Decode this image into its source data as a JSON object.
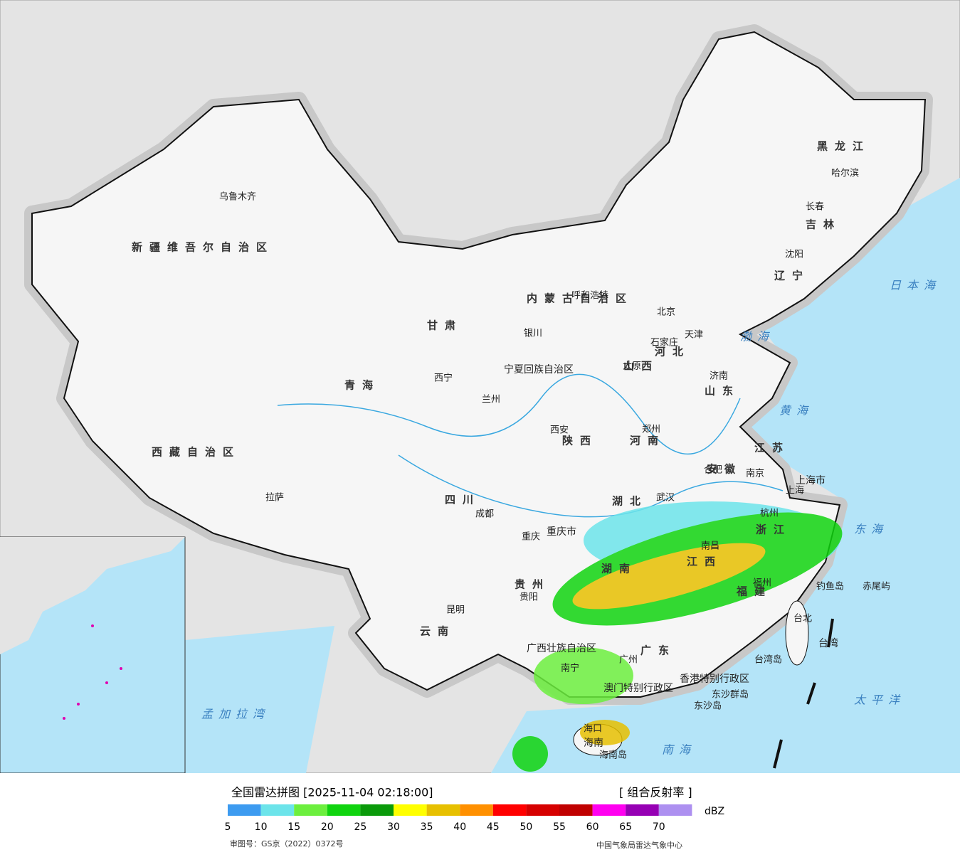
{
  "map": {
    "labels": [
      "新疆维吾尔自治区",
      "西藏自治区",
      "青海",
      "甘肃",
      "内蒙古自治区",
      "黑龙江",
      "吉林",
      "辽宁",
      "河北",
      "山西",
      "山东",
      "河南",
      "陕西",
      "四川",
      "云南",
      "贵州",
      "广西壮族自治区",
      "广东",
      "湖南",
      "湖北",
      "江西",
      "福建",
      "浙江",
      "江苏",
      "安徽",
      "重庆市",
      "上海市",
      "宁夏回族自治区",
      "台湾",
      "香港特别行政区",
      "澳门特别行政区",
      "海南",
      "乌鲁木齐",
      "拉萨",
      "西宁",
      "兰州",
      "银川",
      "呼和浩特",
      "北京",
      "天津",
      "石家庄",
      "太原",
      "济南",
      "郑州",
      "西安",
      "成都",
      "重庆",
      "贵阳",
      "昆明",
      "南宁",
      "广州",
      "武汉",
      "南昌",
      "合肥",
      "南京",
      "上海",
      "杭州",
      "福州",
      "台北",
      "哈尔滨",
      "长春",
      "沈阳",
      "海口",
      "渤海",
      "黄海",
      "日本海",
      "东海",
      "太平洋",
      "南海",
      "孟加拉湾",
      "钓鱼岛",
      "赤尾屿",
      "台湾岛",
      "东沙群岛",
      "东沙岛",
      "海南岛"
    ]
  },
  "legend": {
    "title": "全国雷达拼图 [2025-11-04 02:18:00]",
    "product": "[ 组合反射率 ]",
    "unit": "dBZ",
    "ticks": [
      5,
      10,
      15,
      20,
      25,
      30,
      35,
      40,
      45,
      50,
      55,
      60,
      65,
      70
    ],
    "colors": [
      "#3d9bf0",
      "#6ce4ea",
      "#6cef3e",
      "#10d40f",
      "#0a9a0a",
      "#ffff00",
      "#e7c000",
      "#ff9000",
      "#ff0000",
      "#d60000",
      "#c00000",
      "#ff00f0",
      "#9600b4",
      "#ad90f0"
    ]
  },
  "footer": {
    "approval": "审图号：GS京（2022）0372号",
    "source": "中国气象局雷达气象中心"
  }
}
